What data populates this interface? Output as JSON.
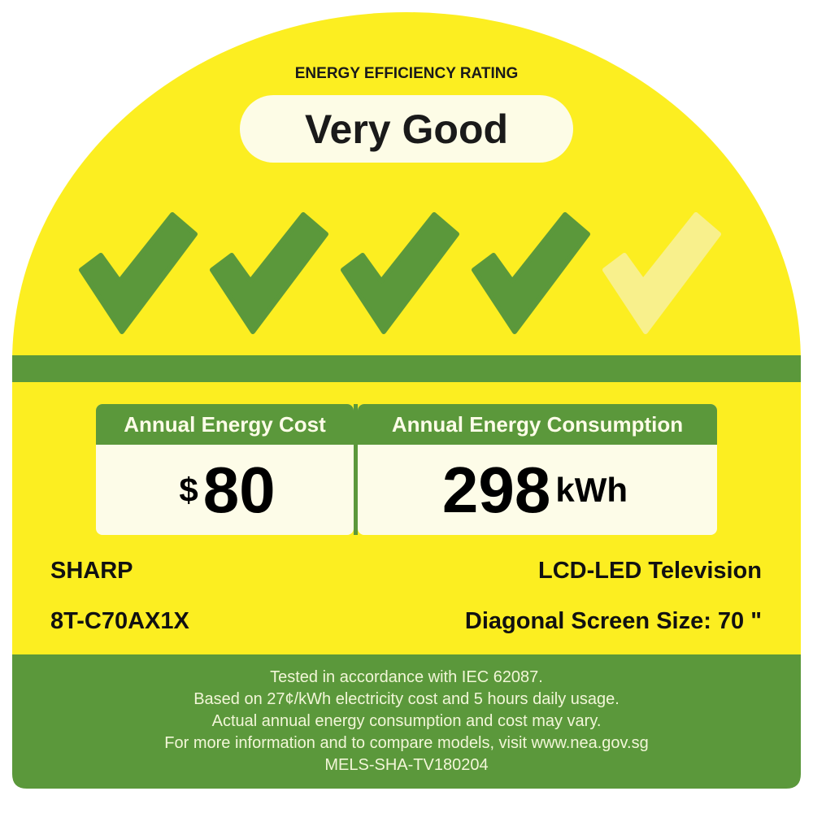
{
  "colors": {
    "yellow": "#fcee21",
    "green": "#5b983b",
    "cream": "#fdfce8",
    "inactive_check": "#f8f08c"
  },
  "rating": {
    "heading": "ENERGY EFFICIENCY RATING",
    "label": "Very Good",
    "ticks_earned": 4,
    "ticks_total": 5
  },
  "cost": {
    "header": "Annual Energy Cost",
    "currency": "$",
    "value": "80"
  },
  "consumption": {
    "header": "Annual Energy Consumption",
    "value": "298",
    "unit": "kWh"
  },
  "product": {
    "brand": "SHARP",
    "model": "8T-C70AX1X",
    "type": "LCD-LED Television",
    "screen_size": "Diagonal Screen Size: 70 \""
  },
  "footer": {
    "lines": [
      "Tested in accordance with IEC 62087.",
      "Based on 27¢/kWh electricity cost and 5 hours daily usage.",
      "Actual annual energy consumption and cost may vary.",
      "For more information and to compare models, visit www.nea.gov.sg",
      "MELS-SHA-TV180204"
    ]
  }
}
